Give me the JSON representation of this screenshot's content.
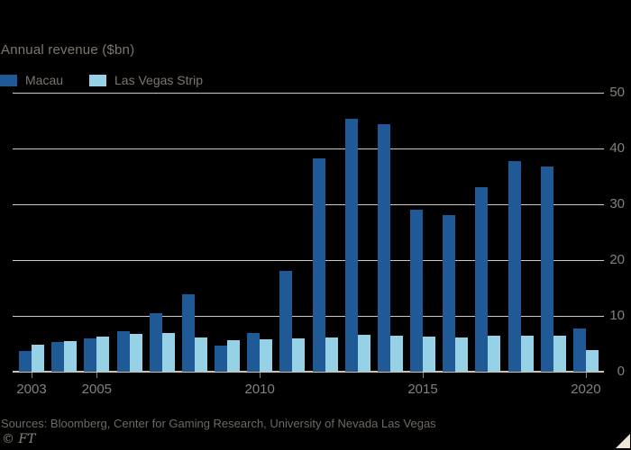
{
  "header": {
    "title": "Annual revenue ($bn)"
  },
  "legend": {
    "items": [
      {
        "label": "Macau",
        "color": "#1f5a96"
      },
      {
        "label": "Las Vegas Strip",
        "color": "#96d1e6"
      }
    ]
  },
  "chart_data": {
    "type": "bar",
    "title": "Annual revenue ($bn)",
    "categories": [
      2003,
      2004,
      2005,
      2006,
      2007,
      2008,
      2009,
      2010,
      2011,
      2012,
      2013,
      2014,
      2015,
      2016,
      2017,
      2018,
      2019,
      2020
    ],
    "series": [
      {
        "name": "Macau",
        "color": "#1f5a96",
        "values": [
          3.7,
          5.4,
          6.0,
          7.2,
          10.5,
          13.8,
          4.6,
          6.9,
          18.1,
          38.2,
          45.4,
          44.3,
          29.1,
          28.0,
          33.1,
          37.7,
          36.8,
          7.7
        ]
      },
      {
        "name": "Las Vegas Strip",
        "color": "#96d1e6",
        "values": [
          4.9,
          5.5,
          6.3,
          6.7,
          6.9,
          6.1,
          5.6,
          5.8,
          6.0,
          6.2,
          6.6,
          6.4,
          6.3,
          6.2,
          6.4,
          6.5,
          6.5,
          3.8
        ]
      }
    ],
    "ylim": [
      0,
      50
    ],
    "yticks": [
      0,
      10,
      20,
      30,
      40,
      50
    ],
    "xtick_labels": [
      "2003",
      "2005",
      "2010",
      "2015",
      "2020"
    ],
    "grid": "horizontal",
    "legend_position": "top-left",
    "y_axis_side": "right"
  },
  "footer": {
    "sources": "Sources: Bloomberg, Center for Gaming Research, University of Nevada Las Vegas",
    "credit": "© FT"
  },
  "colors": {
    "background": "#000000",
    "gridline": "#cdc7c0",
    "axis_line": "#d3c2b0",
    "text_muted": "#7e766e",
    "tick_text": "#87807a",
    "corner_triangle": "#efe4d6"
  }
}
